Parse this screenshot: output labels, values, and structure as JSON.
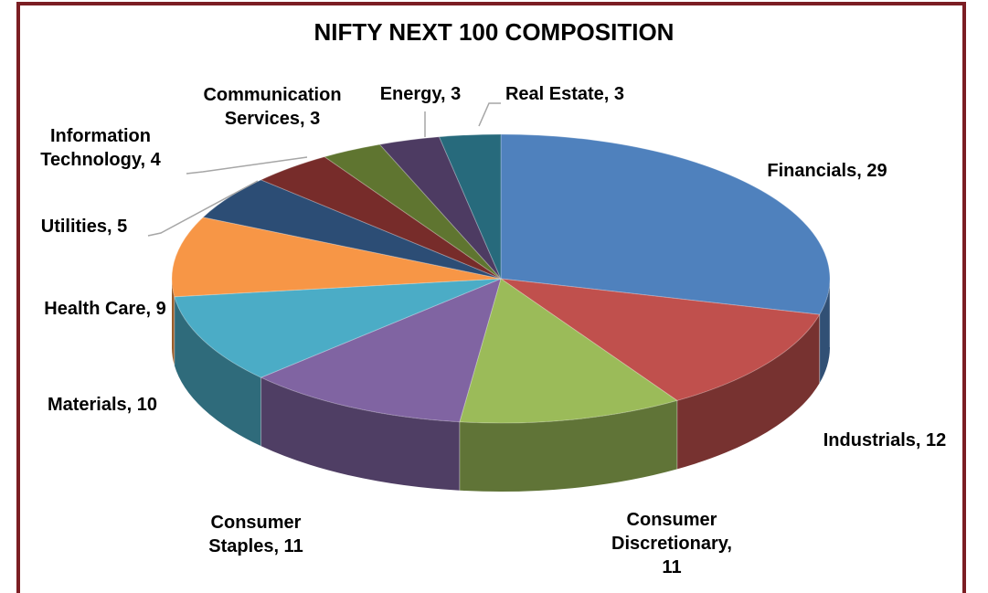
{
  "chart_data": {
    "type": "pie3d",
    "title": "NIFTY NEXT 100 COMPOSITION",
    "values": [
      29,
      12,
      11,
      11,
      10,
      9,
      5,
      4,
      3,
      3,
      3
    ],
    "value_labels": [
      "Financials, 29",
      "Industrials, 12",
      "Consumer Discretionary, 11",
      "Consumer Staples, 11",
      "Materials, 10",
      "Health Care, 9",
      "Utilities, 5",
      "Information Technology, 4",
      "Communication Services, 3",
      "Energy, 3",
      "Real Estate, 3"
    ],
    "colors": [
      "#4f81bd",
      "#c0504d",
      "#9bbb59",
      "#8064a2",
      "#4bacc6",
      "#f79646",
      "#2c4d75",
      "#772c2a",
      "#5f7530",
      "#4d3b62",
      "#276a7c"
    ]
  }
}
